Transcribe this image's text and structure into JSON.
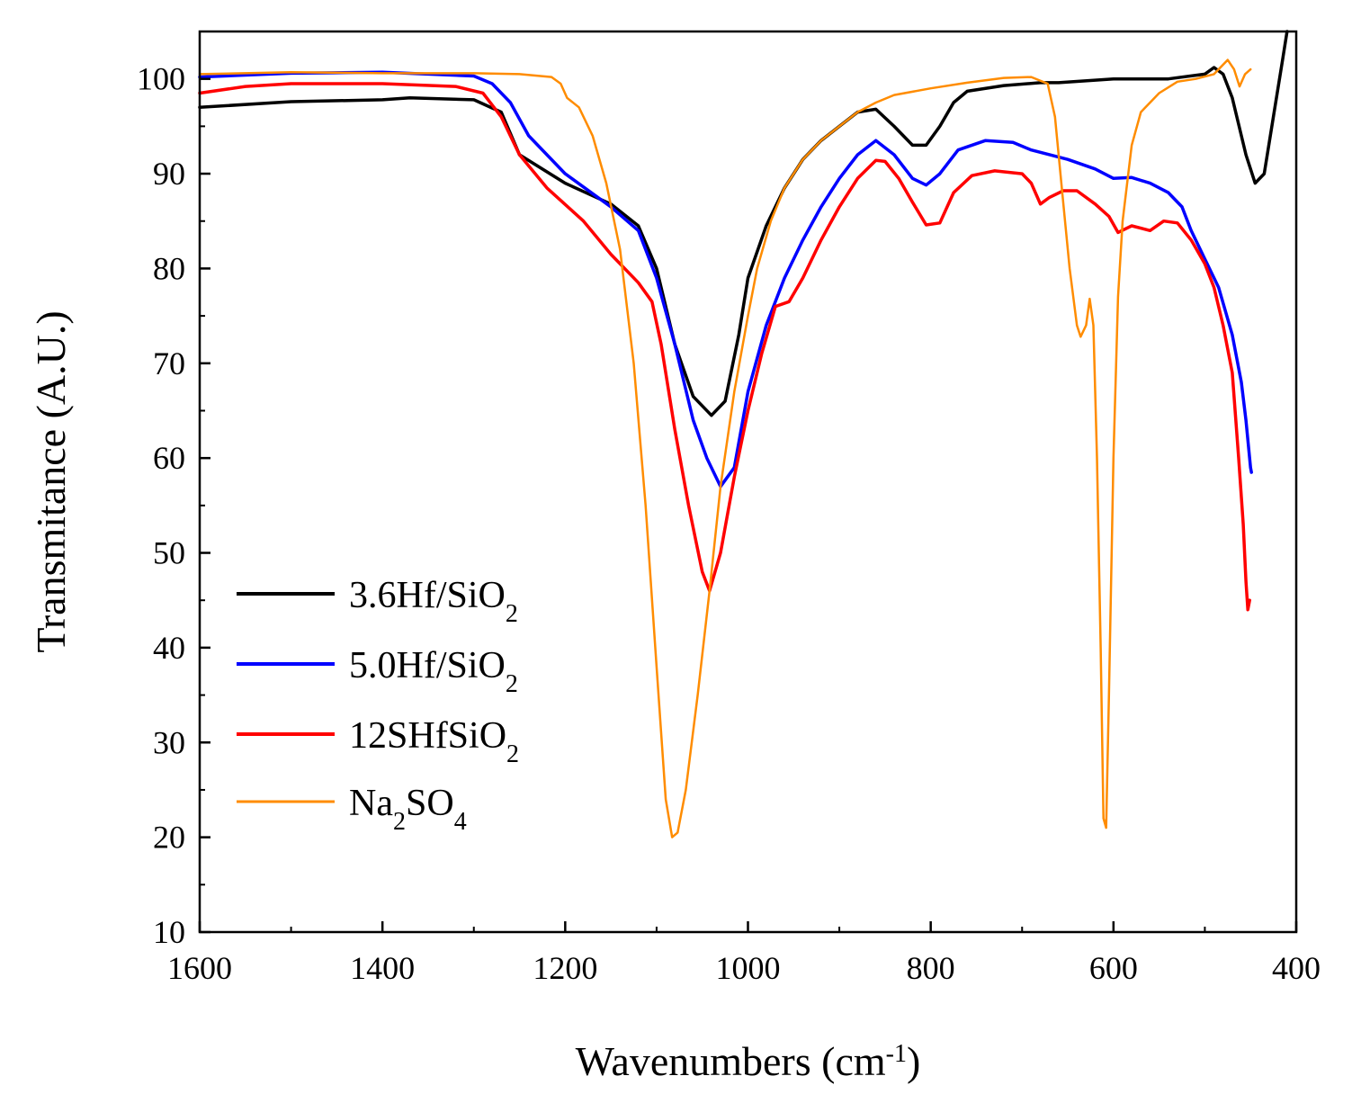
{
  "chart_data": {
    "type": "line",
    "title": "",
    "xlabel": "Wavenumbers (cm",
    "xlabel_sup": "-1",
    "xlabel_end": ")",
    "ylabel": "Transmitance (A.U.)",
    "xlim": [
      1600,
      400
    ],
    "ylim": [
      10,
      105
    ],
    "xticks": [
      "1600",
      "1400",
      "1200",
      "1000",
      "800",
      "600",
      "400"
    ],
    "yticks": [
      "10",
      "20",
      "30",
      "40",
      "50",
      "60",
      "70",
      "80",
      "90",
      "100"
    ],
    "legend_position": "bottom-left",
    "series": [
      {
        "name": "3.6Hf/SiO",
        "sub": "2",
        "color": "#000000",
        "points": [
          [
            1600,
            97
          ],
          [
            1500,
            97.6
          ],
          [
            1400,
            97.8
          ],
          [
            1370,
            98
          ],
          [
            1300,
            97.8
          ],
          [
            1270,
            96.5
          ],
          [
            1250,
            92
          ],
          [
            1200,
            89
          ],
          [
            1150,
            86.8
          ],
          [
            1120,
            84.5
          ],
          [
            1100,
            80
          ],
          [
            1080,
            72
          ],
          [
            1060,
            66.5
          ],
          [
            1040,
            64.5
          ],
          [
            1025,
            66
          ],
          [
            1010,
            73
          ],
          [
            1000,
            79
          ],
          [
            980,
            84.5
          ],
          [
            960,
            88.5
          ],
          [
            940,
            91.5
          ],
          [
            920,
            93.5
          ],
          [
            900,
            95
          ],
          [
            880,
            96.5
          ],
          [
            860,
            96.8
          ],
          [
            840,
            95
          ],
          [
            820,
            93
          ],
          [
            805,
            93
          ],
          [
            790,
            95
          ],
          [
            775,
            97.5
          ],
          [
            760,
            98.7
          ],
          [
            720,
            99.3
          ],
          [
            680,
            99.6
          ],
          [
            660,
            99.6
          ],
          [
            600,
            100
          ],
          [
            540,
            100
          ],
          [
            500,
            100.5
          ],
          [
            490,
            101.2
          ],
          [
            480,
            100.5
          ],
          [
            470,
            98
          ],
          [
            455,
            92
          ],
          [
            445,
            89
          ],
          [
            435,
            90
          ],
          [
            425,
            96
          ],
          [
            415,
            102
          ],
          [
            410,
            105
          ]
        ]
      },
      {
        "name": "5.0Hf/SiO",
        "sub": "2",
        "color": "#0000ff",
        "points": [
          [
            1600,
            100.2
          ],
          [
            1500,
            100.6
          ],
          [
            1400,
            100.7
          ],
          [
            1300,
            100.3
          ],
          [
            1280,
            99.5
          ],
          [
            1260,
            97.5
          ],
          [
            1240,
            94
          ],
          [
            1200,
            90
          ],
          [
            1150,
            86.5
          ],
          [
            1120,
            84
          ],
          [
            1100,
            79
          ],
          [
            1080,
            72
          ],
          [
            1060,
            64
          ],
          [
            1045,
            60
          ],
          [
            1030,
            57
          ],
          [
            1015,
            59
          ],
          [
            1000,
            67
          ],
          [
            980,
            74
          ],
          [
            960,
            79
          ],
          [
            940,
            83
          ],
          [
            920,
            86.5
          ],
          [
            900,
            89.5
          ],
          [
            880,
            92
          ],
          [
            860,
            93.5
          ],
          [
            840,
            92
          ],
          [
            820,
            89.5
          ],
          [
            805,
            88.8
          ],
          [
            790,
            90
          ],
          [
            770,
            92.5
          ],
          [
            740,
            93.5
          ],
          [
            710,
            93.3
          ],
          [
            690,
            92.5
          ],
          [
            650,
            91.5
          ],
          [
            620,
            90.5
          ],
          [
            600,
            89.5
          ],
          [
            580,
            89.6
          ],
          [
            560,
            89
          ],
          [
            540,
            88
          ],
          [
            525,
            86.5
          ],
          [
            515,
            84
          ],
          [
            500,
            81
          ],
          [
            485,
            78
          ],
          [
            470,
            73
          ],
          [
            460,
            68
          ],
          [
            455,
            64
          ],
          [
            450,
            59
          ],
          [
            449,
            58.5
          ]
        ]
      },
      {
        "name": "12SHfSiO",
        "sub": "2",
        "color": "#ff0000",
        "points": [
          [
            1600,
            98.5
          ],
          [
            1550,
            99.2
          ],
          [
            1500,
            99.5
          ],
          [
            1400,
            99.5
          ],
          [
            1320,
            99.2
          ],
          [
            1290,
            98.5
          ],
          [
            1270,
            96
          ],
          [
            1250,
            92
          ],
          [
            1220,
            88.5
          ],
          [
            1180,
            85
          ],
          [
            1150,
            81.5
          ],
          [
            1120,
            78.5
          ],
          [
            1105,
            76.5
          ],
          [
            1095,
            72
          ],
          [
            1080,
            63
          ],
          [
            1065,
            55
          ],
          [
            1050,
            48
          ],
          [
            1042,
            46
          ],
          [
            1030,
            50
          ],
          [
            1015,
            58
          ],
          [
            1000,
            65
          ],
          [
            985,
            71
          ],
          [
            970,
            76
          ],
          [
            955,
            76.5
          ],
          [
            940,
            79
          ],
          [
            920,
            83
          ],
          [
            900,
            86.5
          ],
          [
            880,
            89.5
          ],
          [
            860,
            91.4
          ],
          [
            850,
            91.3
          ],
          [
            835,
            89.5
          ],
          [
            820,
            87
          ],
          [
            805,
            84.6
          ],
          [
            790,
            84.8
          ],
          [
            775,
            88
          ],
          [
            755,
            89.8
          ],
          [
            730,
            90.3
          ],
          [
            700,
            90
          ],
          [
            690,
            89
          ],
          [
            680,
            86.8
          ],
          [
            670,
            87.5
          ],
          [
            655,
            88.2
          ],
          [
            640,
            88.2
          ],
          [
            620,
            86.8
          ],
          [
            605,
            85.5
          ],
          [
            595,
            83.8
          ],
          [
            580,
            84.5
          ],
          [
            560,
            84
          ],
          [
            545,
            85
          ],
          [
            530,
            84.8
          ],
          [
            515,
            83
          ],
          [
            500,
            80.5
          ],
          [
            490,
            78
          ],
          [
            480,
            74
          ],
          [
            470,
            69
          ],
          [
            463,
            60
          ],
          [
            458,
            53
          ],
          [
            455,
            47
          ],
          [
            453,
            44
          ],
          [
            451,
            45
          ]
        ]
      },
      {
        "name": "Na",
        "sub": "2",
        "name_end": "SO",
        "sub_end": "4",
        "color": "#ff8c00",
        "points": [
          [
            1600,
            100.5
          ],
          [
            1500,
            100.7
          ],
          [
            1400,
            100.6
          ],
          [
            1300,
            100.6
          ],
          [
            1250,
            100.5
          ],
          [
            1215,
            100.2
          ],
          [
            1205,
            99.5
          ],
          [
            1198,
            98
          ],
          [
            1185,
            97
          ],
          [
            1170,
            94
          ],
          [
            1155,
            89
          ],
          [
            1140,
            82
          ],
          [
            1125,
            70
          ],
          [
            1112,
            55
          ],
          [
            1100,
            38
          ],
          [
            1090,
            24
          ],
          [
            1083,
            20
          ],
          [
            1077,
            20.5
          ],
          [
            1068,
            25
          ],
          [
            1055,
            35
          ],
          [
            1042,
            46
          ],
          [
            1030,
            57
          ],
          [
            1015,
            67
          ],
          [
            1000,
            75
          ],
          [
            990,
            80
          ],
          [
            975,
            85
          ],
          [
            960,
            88.5
          ],
          [
            940,
            91.5
          ],
          [
            920,
            93.5
          ],
          [
            900,
            95
          ],
          [
            880,
            96.5
          ],
          [
            860,
            97.5
          ],
          [
            840,
            98.3
          ],
          [
            800,
            99
          ],
          [
            760,
            99.6
          ],
          [
            720,
            100.1
          ],
          [
            690,
            100.2
          ],
          [
            672,
            99.5
          ],
          [
            664,
            96
          ],
          [
            656,
            88
          ],
          [
            648,
            80
          ],
          [
            640,
            74
          ],
          [
            636,
            72.8
          ],
          [
            630,
            74
          ],
          [
            626,
            76.8
          ],
          [
            622,
            74
          ],
          [
            618,
            60
          ],
          [
            614,
            40
          ],
          [
            611,
            22
          ],
          [
            608,
            21
          ],
          [
            605,
            35
          ],
          [
            600,
            60
          ],
          [
            595,
            77
          ],
          [
            590,
            85
          ],
          [
            580,
            93
          ],
          [
            570,
            96.5
          ],
          [
            550,
            98.5
          ],
          [
            530,
            99.7
          ],
          [
            510,
            100
          ],
          [
            490,
            100.5
          ],
          [
            480,
            101.5
          ],
          [
            475,
            102
          ],
          [
            468,
            101
          ],
          [
            462,
            99.2
          ],
          [
            456,
            100.5
          ],
          [
            450,
            101
          ]
        ]
      }
    ]
  }
}
